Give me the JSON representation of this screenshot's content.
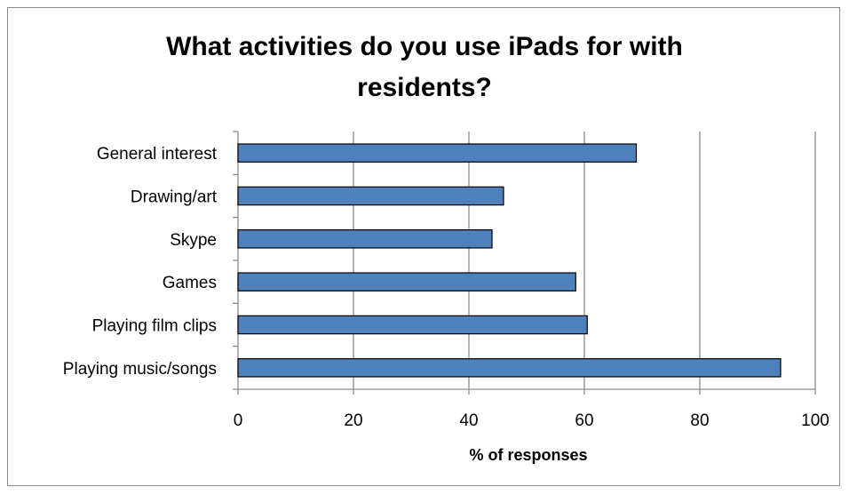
{
  "chart_data": {
    "type": "bar",
    "orientation": "horizontal",
    "title_lines": [
      "What activities do you use iPads for with",
      "residents?"
    ],
    "categories": [
      "General interest",
      "Drawing/art",
      "Skype",
      "Games",
      "Playing film clips",
      "Playing music/songs"
    ],
    "values": [
      69,
      46,
      44,
      58.5,
      60.5,
      94
    ],
    "xlabel": "% of responses",
    "ylabel": "",
    "xlim": [
      0,
      100
    ],
    "xticks": [
      0,
      20,
      40,
      60,
      80,
      100
    ],
    "grid": "vertical",
    "legend": "none",
    "colors": {
      "bar_fill": "#4f81bd",
      "bar_stroke": "#000000",
      "grid": "#8c8c8c",
      "axis": "#8c8c8c"
    }
  }
}
